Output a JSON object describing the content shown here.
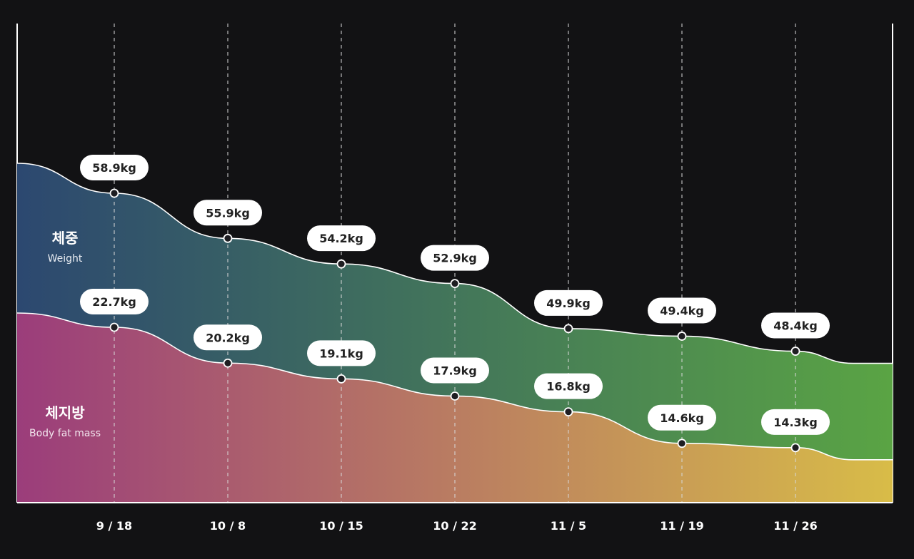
{
  "chart_data": {
    "type": "area",
    "categories": [
      "9 / 18",
      "10 / 8",
      "10 / 15",
      "10 / 22",
      "11 / 5",
      "11 / 19",
      "11 / 26"
    ],
    "unit": "kg",
    "series": [
      {
        "name": "체중",
        "subname": "Weight",
        "values": [
          58.9,
          55.9,
          54.2,
          52.9,
          49.9,
          49.4,
          48.4
        ],
        "colors": [
          "#2c4870",
          "#5aa444"
        ]
      },
      {
        "name": "체지방",
        "subname": "Body fat mass",
        "values": [
          22.7,
          20.2,
          19.1,
          17.9,
          16.8,
          14.6,
          14.3
        ],
        "colors": [
          "#9b3d7b",
          "#d8bc48"
        ]
      }
    ],
    "grid": "vertical dashed",
    "legend": "left, inline"
  }
}
